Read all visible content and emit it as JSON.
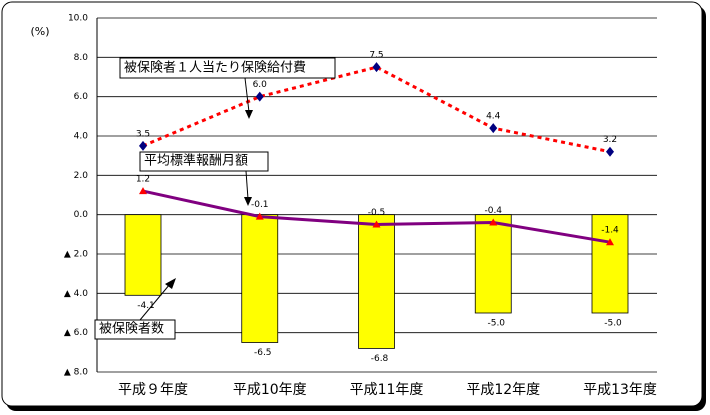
{
  "chart_data": {
    "type": "bar",
    "y_label": "(%)",
    "categories": [
      "平成９年度",
      "平成10年度",
      "平成11年度",
      "平成12年度",
      "平成13年度"
    ],
    "ylim": [
      -8,
      10
    ],
    "yticks": [
      {
        "value": -8,
        "label": "▲ 8.0"
      },
      {
        "value": -6,
        "label": "▲ 6.0"
      },
      {
        "value": -4,
        "label": "▲ 4.0"
      },
      {
        "value": -2,
        "label": "▲ 2.0"
      },
      {
        "value": 0,
        "label": "0.0"
      },
      {
        "value": 2,
        "label": "2.0"
      },
      {
        "value": 4,
        "label": "4.0"
      },
      {
        "value": 6,
        "label": "6.0"
      },
      {
        "value": 8,
        "label": "8.0"
      },
      {
        "value": 10,
        "label": "10.0"
      }
    ],
    "grid": true,
    "series": [
      {
        "name": "被保険者数",
        "type": "bar",
        "color": "#ffff00",
        "values": [
          -4.1,
          -6.5,
          -6.8,
          -5.0,
          -5.0
        ],
        "value_labels": [
          "-4.1",
          "-6.5",
          "-6.8",
          "-5.0",
          "-5.0"
        ]
      },
      {
        "name": "被保険者１人当たり保険給付費",
        "type": "line",
        "color": "#ff0000",
        "marker_color": "#000080",
        "marker": "diamond",
        "dashed": true,
        "values": [
          3.5,
          6.0,
          7.5,
          4.4,
          3.2
        ],
        "value_labels": [
          "3.5",
          "6.0",
          "7.5",
          "4.4",
          "3.2"
        ]
      },
      {
        "name": "平均標準報酬月額",
        "type": "line",
        "color": "#800080",
        "marker_color": "#ff0000",
        "marker": "triangle",
        "dashed": false,
        "values": [
          1.2,
          -0.1,
          -0.5,
          -0.4,
          -1.4
        ]
      }
    ]
  }
}
